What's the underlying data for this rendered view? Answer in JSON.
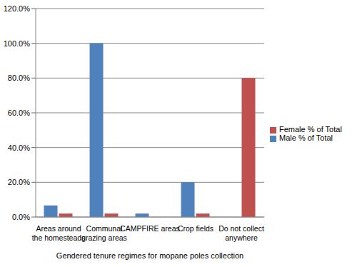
{
  "chart_data": {
    "type": "bar",
    "categories": [
      "Areas around the homesteads",
      "Communal grazing areas",
      "CAMPFIRE areas",
      "Crop fields",
      "Do not collect anywhere"
    ],
    "x_label": "Gendered tenure regimes for mopane poles collection",
    "series": [
      {
        "name": "Male % of Total",
        "color": "#4f81bd",
        "values": [
          6.7,
          100,
          2,
          20,
          0
        ]
      },
      {
        "name": "Female % of Total",
        "color": "#c0504d",
        "values": [
          2,
          2,
          0,
          2,
          80
        ]
      }
    ],
    "ylim": [
      0,
      120
    ],
    "yticks": [
      {
        "value": 0,
        "label": "0.0%"
      },
      {
        "value": 20,
        "label": "20.0%"
      },
      {
        "value": 40,
        "label": "40.0%"
      },
      {
        "value": 60,
        "label": "60.0%"
      },
      {
        "value": 80,
        "label": "80.0%"
      },
      {
        "value": 100,
        "label": "100.0%"
      },
      {
        "value": 120,
        "label": "120.0%"
      }
    ],
    "grid": true,
    "legend": "right"
  }
}
